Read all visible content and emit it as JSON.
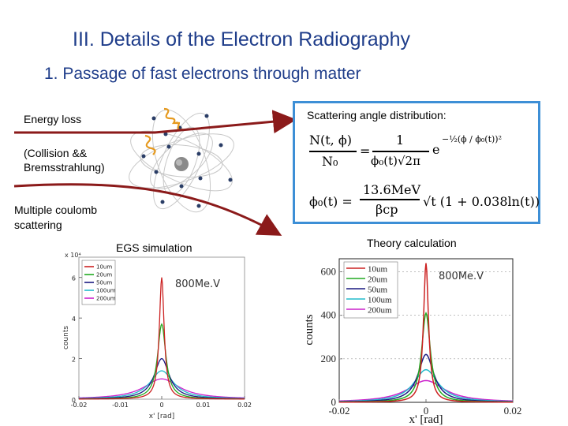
{
  "slide": {
    "title": "III.  Details of the Electron Radiography",
    "subtitle": "1. Passage of fast electrons through matter"
  },
  "left_labels": {
    "energy_loss": "Energy loss",
    "collision_line1": "(Collision &&",
    "collision_line2": "Bremsstrahlung)",
    "coulomb_line1": "Multiple coulomb",
    "coulomb_line2": "scattering"
  },
  "formula_panel": {
    "label": "Scattering angle distribution:",
    "eq1_lhs_num": "N(t, ϕ)",
    "eq1_lhs_den": "N₀",
    "eq1_rhs_num": "1",
    "eq1_rhs_den": "ϕ₀(t)√2π",
    "eq1_exp": "−½(ϕ / ϕ₀(t))²",
    "eq2_lhs": "ϕ₀(t) =",
    "eq2_num": "13.6MeV",
    "eq2_den": "βcp",
    "eq2_tail": "√t (1 + 0.038ln(t))"
  },
  "sim_plot": {
    "caption": "EGS simulation",
    "energy": "800Me.V",
    "y_multiplier": "x 10⁴",
    "ylabel": "counts",
    "xlabel": "x' [rad]",
    "yticks": [
      "0",
      "2",
      "4",
      "6"
    ],
    "xticks": [
      "-0.02",
      "-0.01",
      "0",
      "0.01",
      "0.02"
    ],
    "legend": [
      "10um",
      "20um",
      "50um",
      "100um",
      "200um"
    ]
  },
  "theory_plot": {
    "caption": "Theory calculation",
    "energy": "800Me.V",
    "ylabel": "counts",
    "xlabel": "x' [rad]",
    "yticks": [
      "0",
      "200",
      "400",
      "600"
    ],
    "xticks": [
      "-0.02",
      "0",
      "0.02"
    ],
    "legend": [
      "10um",
      "20um",
      "50um",
      "100um",
      "200um"
    ]
  },
  "chart_data": [
    {
      "type": "line",
      "title": "EGS simulation",
      "xlabel": "x' [rad]",
      "ylabel": "counts",
      "xlim": [
        -0.02,
        0.02
      ],
      "ylim": [
        0,
        70000
      ],
      "series": [
        {
          "name": "10um",
          "color": "#cc2222",
          "peak": 60000,
          "width": 0.0007
        },
        {
          "name": "20um",
          "color": "#22aa22",
          "peak": 37000,
          "width": 0.0012
        },
        {
          "name": "50um",
          "color": "#1a1a80",
          "peak": 20000,
          "width": 0.0022
        },
        {
          "name": "100um",
          "color": "#22bbcc",
          "peak": 14000,
          "width": 0.0034
        },
        {
          "name": "200um",
          "color": "#cc22cc",
          "peak": 10000,
          "width": 0.0052
        }
      ]
    },
    {
      "type": "line",
      "title": "Theory calculation",
      "xlabel": "x' [rad]",
      "ylabel": "counts",
      "xlim": [
        -0.02,
        0.02
      ],
      "ylim": [
        0,
        660
      ],
      "series": [
        {
          "name": "10um",
          "color": "#cc2222",
          "peak": 640,
          "width": 0.0007
        },
        {
          "name": "20um",
          "color": "#22aa22",
          "peak": 410,
          "width": 0.0012
        },
        {
          "name": "50um",
          "color": "#1a1a80",
          "peak": 220,
          "width": 0.0022
        },
        {
          "name": "100um",
          "color": "#22bbcc",
          "peak": 150,
          "width": 0.0034
        },
        {
          "name": "200um",
          "color": "#cc22cc",
          "peak": 100,
          "width": 0.0052
        }
      ]
    }
  ]
}
